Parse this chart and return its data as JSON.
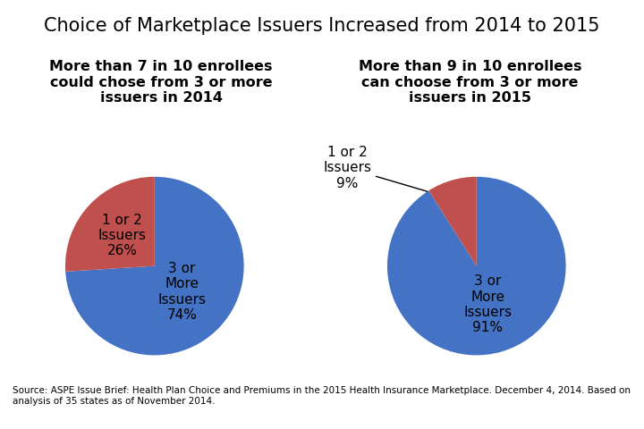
{
  "title": "Choice of Marketplace Issuers Increased from 2014 to 2015",
  "title_fontsize": 15,
  "subtitle_left": "More than 7 in 10 enrollees\ncould chose from 3 or more\nissuers in 2014",
  "subtitle_right": "More than 9 in 10 enrollees\ncan choose from 3 or more\nissuers in 2015",
  "subtitle_fontsize": 11.5,
  "pie1_values": [
    74,
    26
  ],
  "pie2_values": [
    91,
    9
  ],
  "pie_colors": [
    "#4472C4",
    "#C0504D"
  ],
  "pie1_label_large": "3 or\nMore\nIssuers\n74%",
  "pie1_label_small": "1 or 2\nIssuers\n26%",
  "pie2_label_large": "3 or\nMore\nIssuers\n91%",
  "pie2_annotate_label": "1 or 2\nIssuers\n9%",
  "source_text": "Source: ASPE Issue Brief: Health Plan Choice and Premiums in the 2015 Health Insurance Marketplace. December 4, 2014. Based on\nanalysis of 35 states as of November 2014.",
  "source_fontsize": 7.5,
  "background_color": "#FFFFFF",
  "label_fontsize": 11
}
